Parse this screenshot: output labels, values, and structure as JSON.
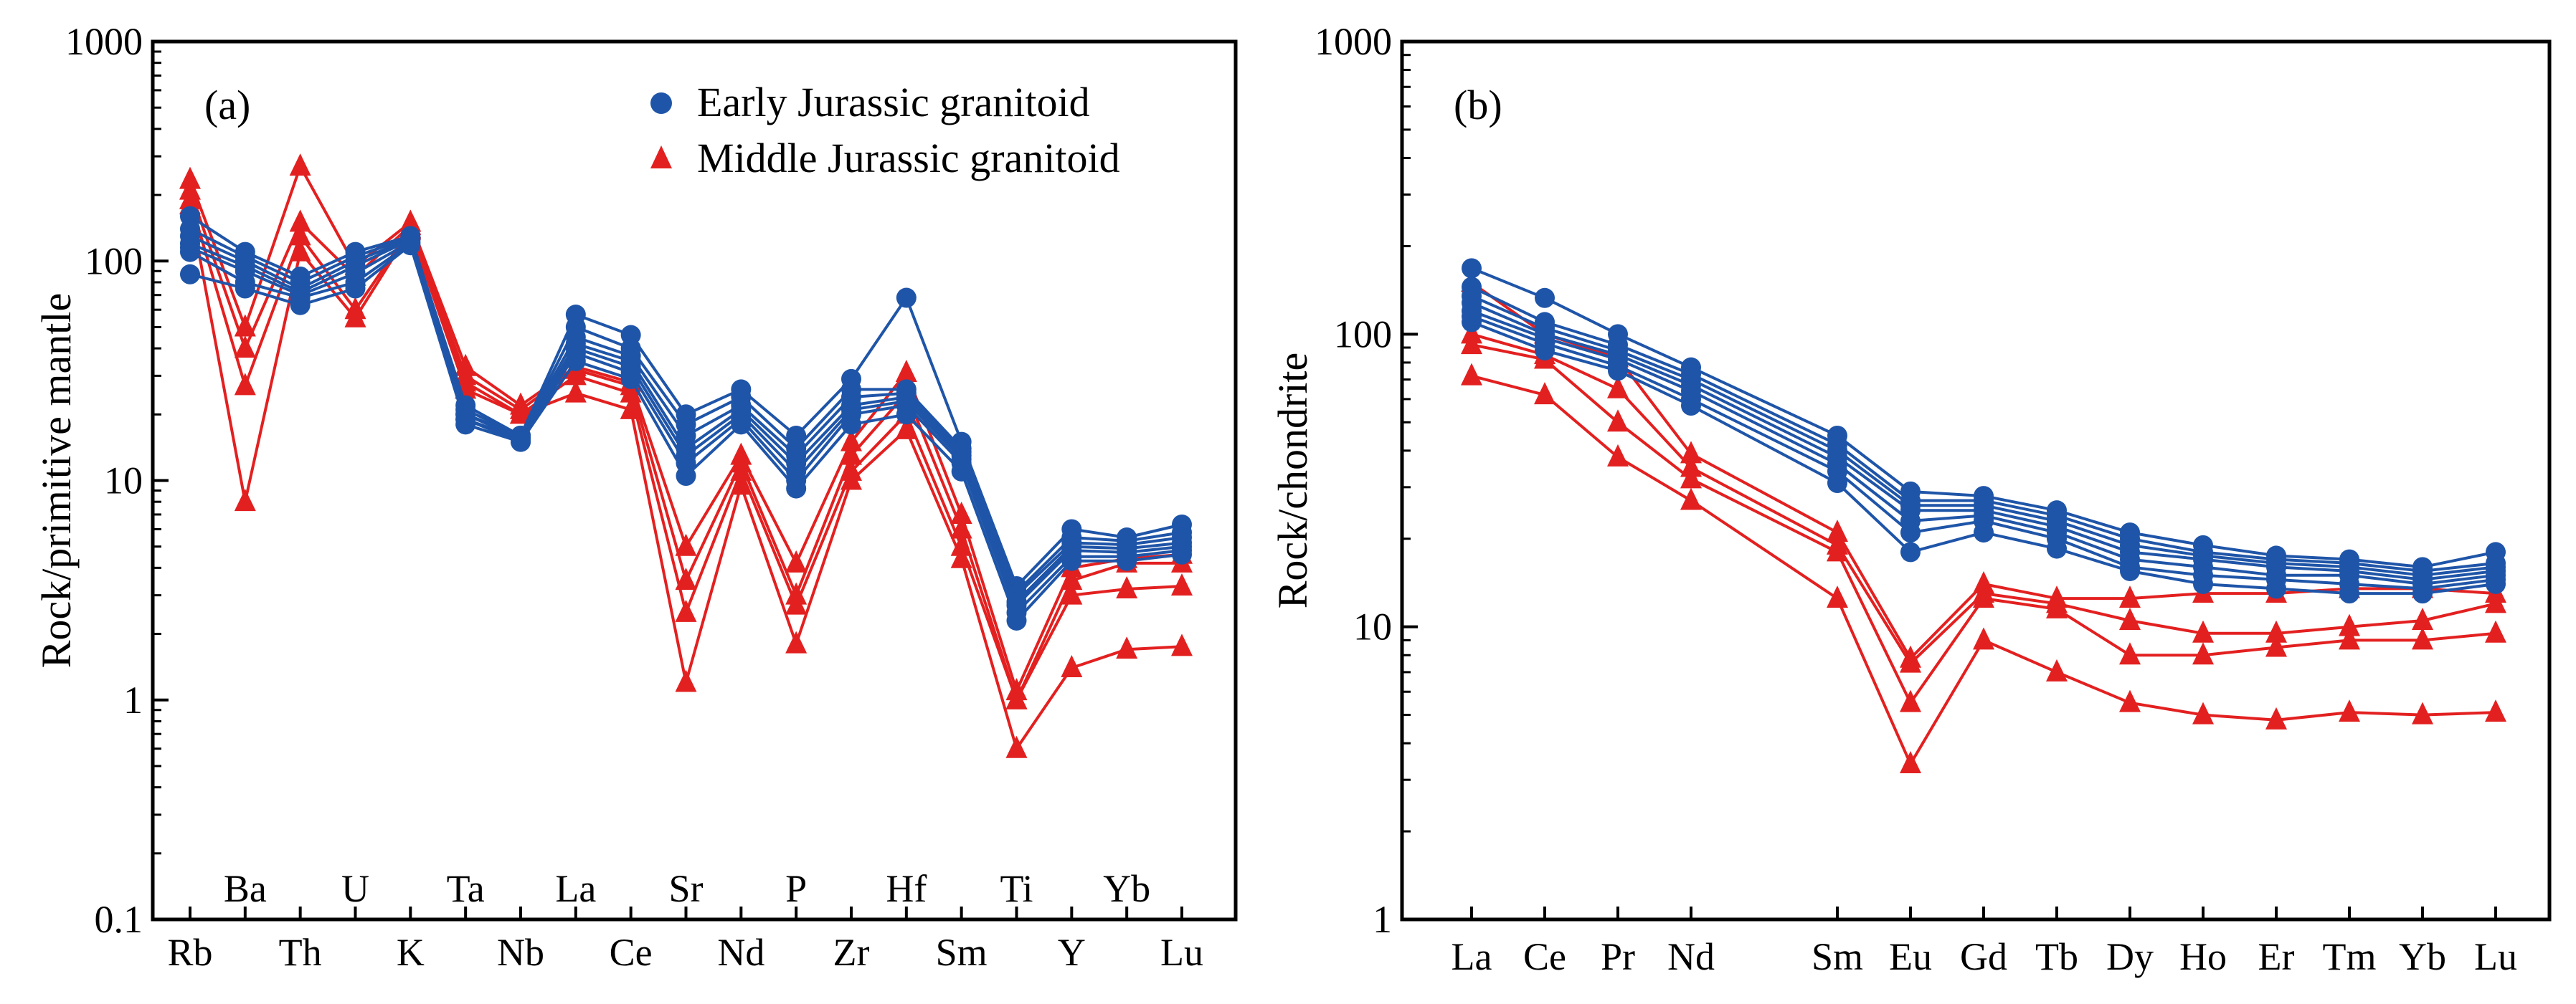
{
  "colors": {
    "early": "#1f55a8",
    "middle": "#e32020"
  },
  "chart_data": [
    {
      "type": "line",
      "panel_label": "(a)",
      "ylabel": "Rock/primitive mantle",
      "xlabel": "",
      "yscale": "log",
      "ylim": [
        0.1,
        1000
      ],
      "ytick_labels": [
        "0.1",
        "1",
        "10",
        "100",
        "1000"
      ],
      "grid": false,
      "legend_position": "top-right",
      "legend": [
        {
          "label": "Early Jurassic granitoid",
          "marker": "circle",
          "color_key": "early"
        },
        {
          "label": "Middle Jurassic granitoid",
          "marker": "triangle",
          "color_key": "middle"
        }
      ],
      "categories": [
        "Rb",
        "Ba",
        "Th",
        "U",
        "K",
        "Ta",
        "Nb",
        "La",
        "Ce",
        "Sr",
        "Nd",
        "P",
        "Zr",
        "Hf",
        "Sm",
        "Ti",
        "Y",
        "Yb",
        "Lu"
      ],
      "category_label_rows": [
        "bottom",
        "top",
        "bottom",
        "top",
        "bottom",
        "top",
        "bottom",
        "top",
        "bottom",
        "top",
        "bottom",
        "top",
        "bottom",
        "top",
        "bottom",
        "top",
        "bottom",
        "top",
        "bottom"
      ],
      "series": [
        {
          "group": "early",
          "values": [
            160,
            110,
            85,
            110,
            130,
            22,
            16,
            57,
            46,
            20,
            26,
            16,
            29,
            68,
            15,
            3.3,
            6.0,
            5.5,
            6.3
          ]
        },
        {
          "group": "early",
          "values": [
            140,
            105,
            80,
            105,
            128,
            21,
            16,
            50,
            40,
            18,
            24,
            14,
            26,
            26,
            14,
            3.1,
            5.5,
            5.3,
            5.8
          ]
        },
        {
          "group": "early",
          "values": [
            130,
            100,
            75,
            100,
            126,
            20,
            16,
            45,
            37,
            16,
            22,
            13,
            24,
            25,
            13.5,
            3.0,
            5.2,
            5.1,
            5.5
          ]
        },
        {
          "group": "early",
          "values": [
            120,
            95,
            72,
            95,
            125,
            20,
            15.5,
            42,
            35,
            14,
            21,
            12,
            22,
            24,
            13,
            2.8,
            5.0,
            4.9,
            5.2
          ]
        },
        {
          "group": "early",
          "values": [
            115,
            90,
            70,
            88,
            122,
            19,
            15.5,
            40,
            33,
            13,
            20,
            11,
            21,
            23,
            12.5,
            2.7,
            4.8,
            4.7,
            5.0
          ]
        },
        {
          "group": "early",
          "values": [
            110,
            80,
            68,
            80,
            120,
            19,
            15,
            38,
            31,
            12,
            19,
            10,
            20,
            22,
            12,
            2.5,
            4.5,
            4.5,
            4.8
          ]
        },
        {
          "group": "early",
          "values": [
            87,
            75,
            63,
            75,
            118,
            18,
            15,
            35,
            29,
            10.5,
            18,
            9.2,
            18,
            20,
            11,
            2.3,
            4.3,
            4.3,
            4.6
          ]
        },
        {
          "group": "middle",
          "values": [
            235,
            50,
            270,
            95,
            150,
            33,
            22,
            33,
            28,
            5.0,
            13,
            4.2,
            15,
            31,
            7.0,
            1.1,
            4.0,
            4.4,
            4.6
          ]
        },
        {
          "group": "middle",
          "values": [
            210,
            40,
            150,
            85,
            145,
            30,
            21,
            32,
            27,
            3.5,
            12,
            3.0,
            13,
            25,
            6.0,
            1.0,
            3.5,
            4.2,
            4.2
          ]
        },
        {
          "group": "middle",
          "values": [
            190,
            27,
            130,
            60,
            140,
            28,
            20,
            30,
            25,
            2.5,
            11,
            2.7,
            11,
            20,
            5.0,
            1.0,
            3.0,
            3.2,
            3.3
          ]
        },
        {
          "group": "middle",
          "values": [
            180,
            8,
            110,
            55,
            138,
            26,
            20,
            25,
            21,
            1.2,
            9.5,
            1.8,
            10,
            17,
            4.4,
            0.6,
            1.4,
            1.7,
            1.75
          ]
        }
      ]
    },
    {
      "type": "line",
      "panel_label": "(b)",
      "ylabel": "Rock/chondrite",
      "xlabel": "",
      "yscale": "log",
      "ylim": [
        1,
        1000
      ],
      "ytick_labels": [
        "1",
        "10",
        "100",
        "1000"
      ],
      "grid": false,
      "categories": [
        "La",
        "Ce",
        "Pr",
        "Nd",
        "Sm",
        "Eu",
        "Gd",
        "Tb",
        "Dy",
        "Ho",
        "Er",
        "Tm",
        "Yb",
        "Lu"
      ],
      "category_positions": [
        0,
        1,
        2,
        3,
        5,
        6,
        7,
        8,
        9,
        10,
        11,
        12,
        13,
        14
      ],
      "series": [
        {
          "group": "early",
          "values": [
            168,
            133,
            100,
            77,
            45,
            29,
            28,
            25,
            21,
            19,
            17.5,
            17,
            16,
            18
          ]
        },
        {
          "group": "early",
          "values": [
            145,
            110,
            92,
            73,
            42,
            27,
            27,
            24,
            20,
            18,
            17,
            16.5,
            15.5,
            16.5
          ]
        },
        {
          "group": "early",
          "values": [
            135,
            105,
            88,
            70,
            40,
            26,
            26,
            23,
            19,
            17.5,
            16.5,
            16,
            15,
            16
          ]
        },
        {
          "group": "early",
          "values": [
            128,
            100,
            85,
            67,
            38,
            25,
            25,
            22,
            18,
            17,
            16,
            15.5,
            14.5,
            15.5
          ]
        },
        {
          "group": "early",
          "values": [
            120,
            97,
            82,
            64,
            36,
            23,
            24,
            21,
            17,
            16,
            15,
            15,
            14,
            15
          ]
        },
        {
          "group": "early",
          "values": [
            115,
            93,
            78,
            60,
            34,
            21,
            23,
            20,
            16,
            15,
            14.5,
            14,
            13.5,
            14.5
          ]
        },
        {
          "group": "early",
          "values": [
            110,
            88,
            75,
            57,
            31,
            18,
            21,
            18.5,
            15.5,
            14,
            13.5,
            13,
            13,
            14
          ]
        },
        {
          "group": "middle",
          "values": [
            150,
            100,
            83,
            39,
            21,
            7.8,
            14,
            12.5,
            12.5,
            13,
            13,
            13.5,
            13.5,
            13
          ]
        },
        {
          "group": "middle",
          "values": [
            100,
            85,
            65,
            35,
            19,
            7.5,
            13,
            12,
            10.5,
            9.5,
            9.5,
            10,
            10.5,
            12
          ]
        },
        {
          "group": "middle",
          "values": [
            92,
            82,
            50,
            32,
            18,
            5.5,
            12.5,
            11.5,
            8.0,
            8.0,
            8.5,
            9.0,
            9.0,
            9.5
          ]
        },
        {
          "group": "middle",
          "values": [
            72,
            62,
            38,
            27,
            12.5,
            3.4,
            9.0,
            7.0,
            5.5,
            5.0,
            4.8,
            5.1,
            5.0,
            5.1
          ]
        }
      ]
    }
  ]
}
